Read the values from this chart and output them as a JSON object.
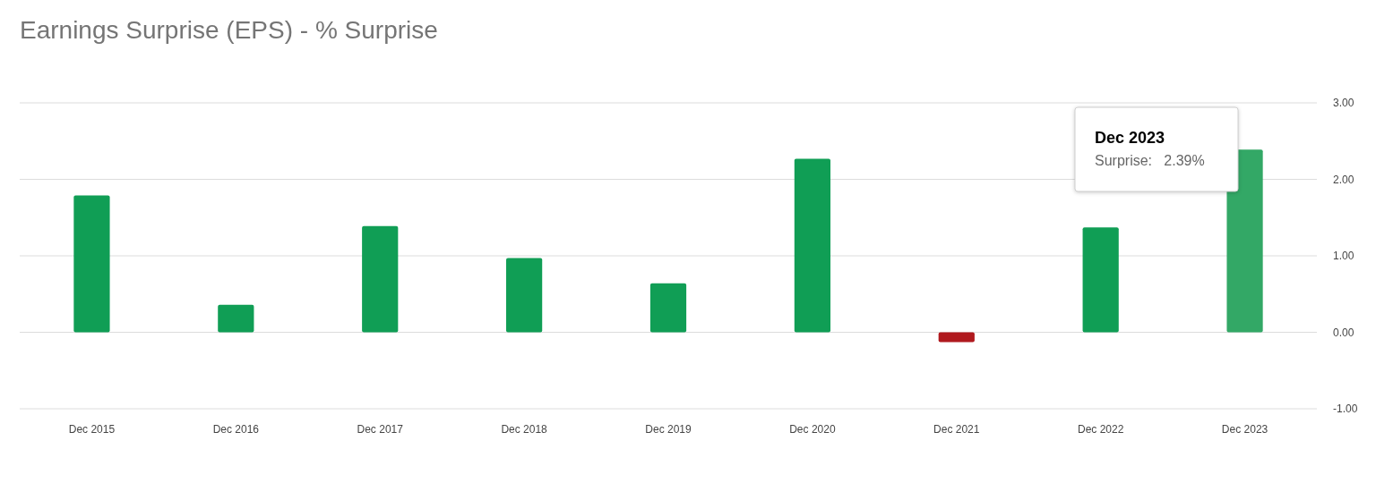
{
  "chart_data": {
    "type": "bar",
    "title": "Earnings Surprise (EPS) - % Surprise",
    "categories": [
      "Dec 2015",
      "Dec 2016",
      "Dec 2017",
      "Dec 2018",
      "Dec 2019",
      "Dec 2020",
      "Dec 2021",
      "Dec 2022",
      "Dec 2023"
    ],
    "values": [
      1.79,
      0.36,
      1.39,
      0.97,
      0.64,
      2.27,
      -0.13,
      1.37,
      2.39
    ],
    "colors": [
      "#109e55",
      "#109e55",
      "#109e55",
      "#109e55",
      "#109e55",
      "#109e55",
      "#b0191e",
      "#109e55",
      "#33a866"
    ],
    "ylim": [
      -1,
      3
    ],
    "yticks": [
      {
        "value": -1,
        "label": "-1.00"
      },
      {
        "value": 0,
        "label": "0.00"
      },
      {
        "value": 1,
        "label": "1.00"
      },
      {
        "value": 2,
        "label": "2.00"
      },
      {
        "value": 3,
        "label": "3.00"
      }
    ],
    "grid": "y",
    "annotations": [
      "Dec 2023",
      "Surprise:   2.39%"
    ]
  }
}
